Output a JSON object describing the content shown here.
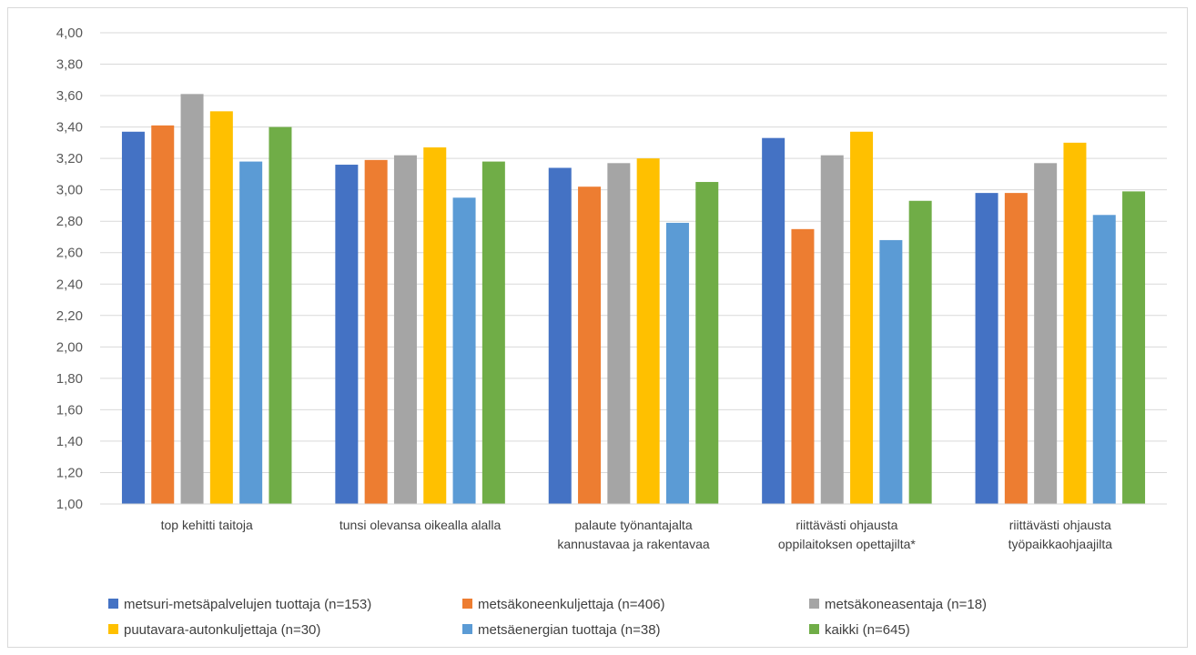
{
  "chart_data": {
    "type": "bar",
    "title": "",
    "xlabel": "",
    "ylabel": "",
    "ylim": [
      1.0,
      4.0
    ],
    "y_ticks": [
      "1,00",
      "1,20",
      "1,40",
      "1,60",
      "1,80",
      "2,00",
      "2,20",
      "2,40",
      "2,60",
      "2,80",
      "3,00",
      "3,20",
      "3,40",
      "3,60",
      "3,80",
      "4,00"
    ],
    "grid": true,
    "legend_position": "bottom",
    "categories": [
      [
        "top kehitti taitoja"
      ],
      [
        "tunsi olevansa oikealla alalla"
      ],
      [
        "palaute työnantajalta",
        "kannustavaa ja rakentavaa"
      ],
      [
        "riittävästi ohjausta",
        "oppilaitoksen opettajilta*"
      ],
      [
        "riittävästi ohjausta",
        "työpaikkaohjaajilta"
      ]
    ],
    "series": [
      {
        "name": "metsuri-metsäpalvelujen tuottaja (n=153)",
        "color": "#4472c4",
        "values": [
          3.37,
          3.16,
          3.14,
          3.33,
          2.98
        ]
      },
      {
        "name": "metsäkoneenkuljettaja (n=406)",
        "color": "#ed7d31",
        "values": [
          3.41,
          3.19,
          3.02,
          2.75,
          2.98
        ]
      },
      {
        "name": "metsäkoneasentaja (n=18)",
        "color": "#a5a5a5",
        "values": [
          3.61,
          3.22,
          3.17,
          3.22,
          3.17
        ]
      },
      {
        "name": "puutavara-autonkuljettaja (n=30)",
        "color": "#ffc000",
        "values": [
          3.5,
          3.27,
          3.2,
          3.37,
          3.3
        ]
      },
      {
        "name": "metsäenergian tuottaja (n=38)",
        "color": "#5b9bd5",
        "values": [
          3.18,
          2.95,
          2.79,
          2.68,
          2.84
        ]
      },
      {
        "name": "kaikki (n=645)",
        "color": "#70ad47",
        "values": [
          3.4,
          3.18,
          3.05,
          2.93,
          2.99
        ]
      }
    ]
  }
}
